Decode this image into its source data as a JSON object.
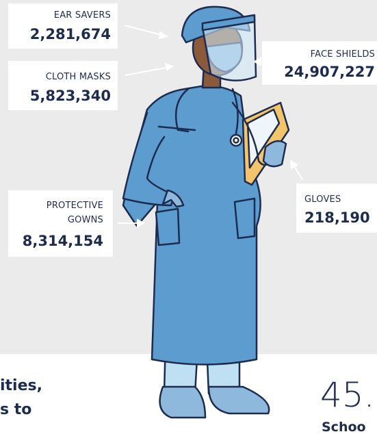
{
  "items": [
    {
      "label": "EAR SAVERS",
      "count": "2,281,674"
    },
    {
      "label": "CLOTH MASKS",
      "count": "5,823,340"
    },
    {
      "label": "FACE SHIELDS",
      "count": "24,907,227"
    },
    {
      "label": [
        "PROTECTIVE",
        "GOWNS"
      ],
      "count": "8,314,154"
    },
    {
      "label": "GLOVES",
      "count": "218,190"
    }
  ],
  "footer": {
    "left_lines": [
      "ities,",
      "s to"
    ],
    "right_number": "45.",
    "right_label": "Schoo"
  }
}
